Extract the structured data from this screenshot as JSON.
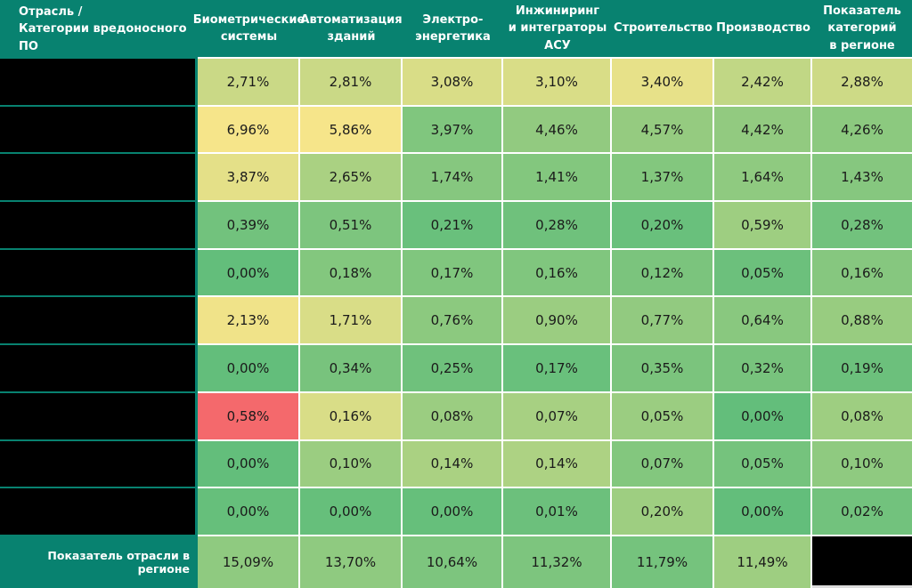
{
  "colors": {
    "teal_header": "#088270",
    "grid_line": "#ffffff",
    "redacted_black": "#000000",
    "cell_text": "#1a1a1a",
    "header_text": "#ffffff",
    "scale_low_green": "#63be7b",
    "scale_mid_yellow": "#f6e58a",
    "scale_high_red": "#f4696c"
  },
  "header": {
    "corner": "Отрасль /\nКатегории вредоносного ПО",
    "columns": [
      "Биометрические\nсистемы",
      "Автоматизация\nзданий",
      "Электро-\nэнергетика",
      "Инжиниринг\nи интеграторы\nАСУ",
      "Строительство",
      "Производство",
      "Показатель\nкатегорий\nв регионе"
    ]
  },
  "rows": [
    {
      "label_redacted": true,
      "cells": [
        {
          "v": "2,71%",
          "bg": "#cad986"
        },
        {
          "v": "2,81%",
          "bg": "#cad986"
        },
        {
          "v": "3,08%",
          "bg": "#d9dd87"
        },
        {
          "v": "3,10%",
          "bg": "#d9dd87"
        },
        {
          "v": "3,40%",
          "bg": "#e7e189"
        },
        {
          "v": "2,42%",
          "bg": "#c1d785"
        },
        {
          "v": "2,88%",
          "bg": "#cdda86"
        }
      ]
    },
    {
      "label_redacted": true,
      "cells": [
        {
          "v": "6,96%",
          "bg": "#f6e58a"
        },
        {
          "v": "5,86%",
          "bg": "#f6e58a"
        },
        {
          "v": "3,97%",
          "bg": "#80c67e"
        },
        {
          "v": "4,46%",
          "bg": "#92ca80"
        },
        {
          "v": "4,57%",
          "bg": "#95cb80"
        },
        {
          "v": "4,42%",
          "bg": "#92ca80"
        },
        {
          "v": "4,26%",
          "bg": "#8cc97f"
        }
      ]
    },
    {
      "label_redacted": true,
      "cells": [
        {
          "v": "3,87%",
          "bg": "#e4e088"
        },
        {
          "v": "2,65%",
          "bg": "#aad182"
        },
        {
          "v": "1,74%",
          "bg": "#86c77f"
        },
        {
          "v": "1,41%",
          "bg": "#83c77e"
        },
        {
          "v": "1,37%",
          "bg": "#83c77e"
        },
        {
          "v": "1,64%",
          "bg": "#8fca80"
        },
        {
          "v": "1,43%",
          "bg": "#86c77f"
        }
      ]
    },
    {
      "label_redacted": true,
      "cells": [
        {
          "v": "0,39%",
          "bg": "#72c27d"
        },
        {
          "v": "0,51%",
          "bg": "#7dc57e"
        },
        {
          "v": "0,21%",
          "bg": "#69c07c"
        },
        {
          "v": "0,28%",
          "bg": "#6fc17c"
        },
        {
          "v": "0,20%",
          "bg": "#69c07c"
        },
        {
          "v": "0,59%",
          "bg": "#9ece81"
        },
        {
          "v": "0,28%",
          "bg": "#72c27d"
        }
      ]
    },
    {
      "label_redacted": true,
      "cells": [
        {
          "v": "0,00%",
          "bg": "#63be7b"
        },
        {
          "v": "0,18%",
          "bg": "#83c77e"
        },
        {
          "v": "0,17%",
          "bg": "#80c67e"
        },
        {
          "v": "0,16%",
          "bg": "#80c67e"
        },
        {
          "v": "0,12%",
          "bg": "#7bc47d"
        },
        {
          "v": "0,05%",
          "bg": "#6cc07c"
        },
        {
          "v": "0,16%",
          "bg": "#86c77f"
        }
      ]
    },
    {
      "label_redacted": true,
      "cells": [
        {
          "v": "2,13%",
          "bg": "#f0e389"
        },
        {
          "v": "1,71%",
          "bg": "#d9dd87"
        },
        {
          "v": "0,76%",
          "bg": "#8cc97f"
        },
        {
          "v": "0,90%",
          "bg": "#9bcd81"
        },
        {
          "v": "0,77%",
          "bg": "#92ca80"
        },
        {
          "v": "0,64%",
          "bg": "#89c87f"
        },
        {
          "v": "0,88%",
          "bg": "#98cc80"
        }
      ]
    },
    {
      "label_redacted": true,
      "cells": [
        {
          "v": "0,00%",
          "bg": "#63be7b"
        },
        {
          "v": "0,34%",
          "bg": "#78c37d"
        },
        {
          "v": "0,25%",
          "bg": "#6fc17c"
        },
        {
          "v": "0,17%",
          "bg": "#69c07c"
        },
        {
          "v": "0,35%",
          "bg": "#7bc47d"
        },
        {
          "v": "0,32%",
          "bg": "#78c37d"
        },
        {
          "v": "0,19%",
          "bg": "#6cc07c"
        }
      ]
    },
    {
      "label_redacted": true,
      "cells": [
        {
          "v": "0,58%",
          "bg": "#f4696c"
        },
        {
          "v": "0,16%",
          "bg": "#d9dd87"
        },
        {
          "v": "0,08%",
          "bg": "#9bcd81"
        },
        {
          "v": "0,07%",
          "bg": "#a7d082"
        },
        {
          "v": "0,05%",
          "bg": "#9bcd81"
        },
        {
          "v": "0,00%",
          "bg": "#63be7b"
        },
        {
          "v": "0,08%",
          "bg": "#9ece81"
        }
      ]
    },
    {
      "label_redacted": true,
      "cells": [
        {
          "v": "0,00%",
          "bg": "#63be7b"
        },
        {
          "v": "0,10%",
          "bg": "#9bcd81"
        },
        {
          "v": "0,14%",
          "bg": "#aad182"
        },
        {
          "v": "0,14%",
          "bg": "#add283"
        },
        {
          "v": "0,07%",
          "bg": "#83c77e"
        },
        {
          "v": "0,05%",
          "bg": "#75c37d"
        },
        {
          "v": "0,10%",
          "bg": "#8fca80"
        }
      ]
    },
    {
      "label_redacted": true,
      "cells": [
        {
          "v": "0,00%",
          "bg": "#66bf7b"
        },
        {
          "v": "0,00%",
          "bg": "#66bf7b"
        },
        {
          "v": "0,00%",
          "bg": "#66bf7b"
        },
        {
          "v": "0,01%",
          "bg": "#6cc07c"
        },
        {
          "v": "0,20%",
          "bg": "#9ece81"
        },
        {
          "v": "0,00%",
          "bg": "#63be7b"
        },
        {
          "v": "0,02%",
          "bg": "#72c27d"
        }
      ]
    }
  ],
  "footer": {
    "label": "Показатель отрасли в регионе",
    "cells": [
      {
        "v": "15,09%",
        "bg": "#8fca80"
      },
      {
        "v": "13,70%",
        "bg": "#8fca80"
      },
      {
        "v": "10,64%",
        "bg": "#7dc57e"
      },
      {
        "v": "11,32%",
        "bg": "#7dc57e"
      },
      {
        "v": "11,79%",
        "bg": "#75c37d"
      },
      {
        "v": "11,49%",
        "bg": "#9ece81"
      }
    ],
    "last_cell_redacted": true
  },
  "chart_data": {
    "type": "heatmap",
    "title": "Отрасль / Категории вредоносного ПО",
    "columns": [
      "Биометрические системы",
      "Автоматизация зданий",
      "Электро-энергетика",
      "Инжиниринг и интеграторы АСУ",
      "Строительство",
      "Производство",
      "Показатель категорий в регионе"
    ],
    "row_labels": [
      "(redacted)",
      "(redacted)",
      "(redacted)",
      "(redacted)",
      "(redacted)",
      "(redacted)",
      "(redacted)",
      "(redacted)",
      "(redacted)",
      "(redacted)"
    ],
    "values_percent": [
      [
        2.71,
        2.81,
        3.08,
        3.1,
        3.4,
        2.42,
        2.88
      ],
      [
        6.96,
        5.86,
        3.97,
        4.46,
        4.57,
        4.42,
        4.26
      ],
      [
        3.87,
        2.65,
        1.74,
        1.41,
        1.37,
        1.64,
        1.43
      ],
      [
        0.39,
        0.51,
        0.21,
        0.28,
        0.2,
        0.59,
        0.28
      ],
      [
        0.0,
        0.18,
        0.17,
        0.16,
        0.12,
        0.05,
        0.16
      ],
      [
        2.13,
        1.71,
        0.76,
        0.9,
        0.77,
        0.64,
        0.88
      ],
      [
        0.0,
        0.34,
        0.25,
        0.17,
        0.35,
        0.32,
        0.19
      ],
      [
        0.58,
        0.16,
        0.08,
        0.07,
        0.05,
        0.0,
        0.08
      ],
      [
        0.0,
        0.1,
        0.14,
        0.14,
        0.07,
        0.05,
        0.1
      ],
      [
        0.0,
        0.0,
        0.0,
        0.01,
        0.2,
        0.0,
        0.02
      ]
    ],
    "footer_row": {
      "label": "Показатель отрасли в регионе",
      "values_percent": [
        15.09,
        13.7,
        10.64,
        11.32,
        11.79,
        11.49,
        null
      ],
      "last_cell_redacted": true
    },
    "value_format": "percent, comma decimal separator",
    "color_scale": {
      "low": "#63be7b",
      "mid": "#f6e58a",
      "high": "#f4696c",
      "note": "green-yellow-red heat scale; one red outlier cell at row 8, column 1 (0,58%)"
    },
    "layout": {
      "grid": "white 2px gridlines between value cells",
      "first_column_redacted_black": true,
      "header_and_footer_label_teal": "#088270"
    }
  }
}
